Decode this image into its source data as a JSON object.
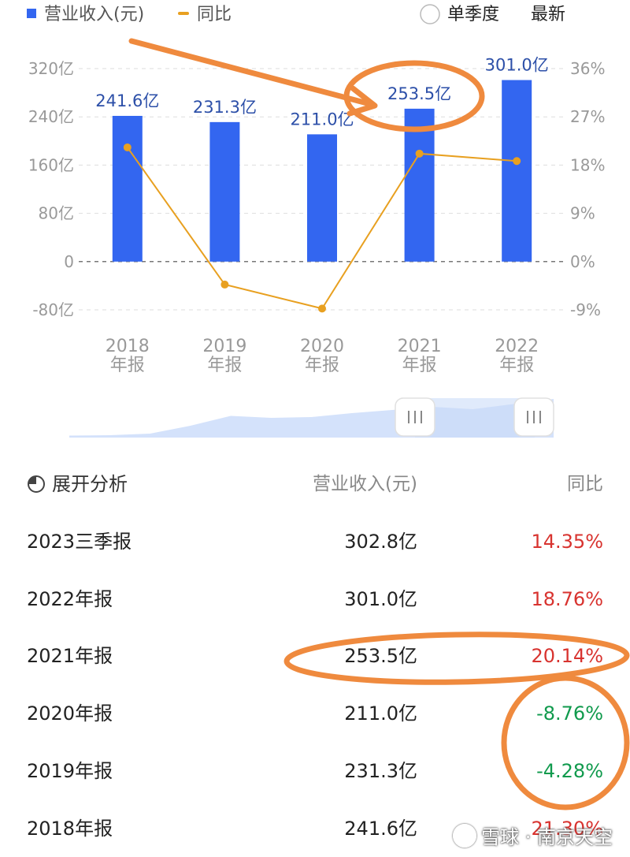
{
  "legend": {
    "revenue_label": "营业收入(元)",
    "yoy_label": "同比",
    "single_quarter_label": "单季度",
    "latest_label": "最新"
  },
  "chart_data": {
    "type": "bar",
    "categories": [
      "2018\n年报",
      "2019\n年报",
      "2020\n年报",
      "2021\n年报",
      "2022\n年报"
    ],
    "series": [
      {
        "name": "营业收入(元)",
        "type": "bar",
        "values": [
          241.6,
          231.3,
          211.0,
          253.5,
          301.0
        ],
        "labels": [
          "241.6亿",
          "231.3亿",
          "211.0亿",
          "253.5亿",
          "301.0亿"
        ],
        "color": "#3366f0"
      },
      {
        "name": "同比",
        "type": "line",
        "values": [
          21.3,
          -4.28,
          -8.76,
          20.14,
          18.76
        ],
        "color": "#e8a020"
      }
    ],
    "y_left": {
      "ticks": [
        -80,
        0,
        80,
        160,
        240,
        320
      ],
      "tick_labels": [
        "-80亿",
        "0",
        "80亿",
        "160亿",
        "240亿",
        "320亿"
      ],
      "ylim": [
        -80,
        320
      ]
    },
    "y_right": {
      "ticks": [
        -9,
        0,
        9,
        18,
        27,
        36
      ],
      "tick_labels": [
        "-9%",
        "0%",
        "9%",
        "18%",
        "27%",
        "36%"
      ],
      "ylim": [
        -9,
        36
      ]
    },
    "grid": true,
    "legend": "top-left"
  },
  "overview_values": [
    0.05,
    0.06,
    0.1,
    0.3,
    0.55,
    0.5,
    0.52,
    0.62,
    0.7,
    0.78,
    0.72,
    0.85,
    0.98
  ],
  "annotation_color": "#ef8a3e",
  "table": {
    "header": {
      "expand_label": "展开分析",
      "revenue_label": "营业收入(元)",
      "yoy_label": "同比"
    },
    "rows": [
      {
        "period": "2023三季报",
        "revenue": "302.8亿",
        "yoy": "14.35%",
        "sign": "pos"
      },
      {
        "period": "2022年报",
        "revenue": "301.0亿",
        "yoy": "18.76%",
        "sign": "pos"
      },
      {
        "period": "2021年报",
        "revenue": "253.5亿",
        "yoy": "20.14%",
        "sign": "pos"
      },
      {
        "period": "2020年报",
        "revenue": "211.0亿",
        "yoy": "-8.76%",
        "sign": "neg"
      },
      {
        "period": "2019年报",
        "revenue": "231.3亿",
        "yoy": "-4.28%",
        "sign": "neg"
      },
      {
        "period": "2018年报",
        "revenue": "241.6亿",
        "yoy": "21.30%",
        "sign": "pos"
      }
    ]
  },
  "watermark": "雪球 · 南京天空"
}
